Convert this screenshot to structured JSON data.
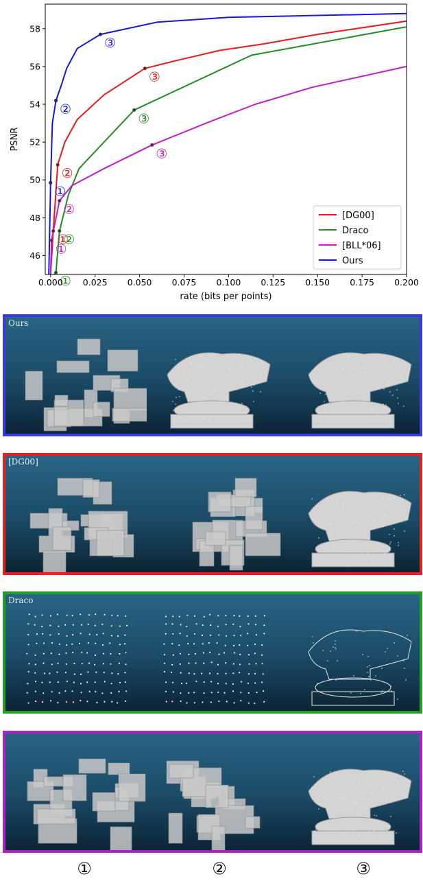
{
  "chart_data": {
    "type": "line",
    "title": "",
    "xlabel": "rate (bits per points)",
    "ylabel": "PSNR",
    "xlim": [
      -0.003,
      0.2
    ],
    "ylim": [
      45,
      59.3
    ],
    "xticks": [
      "0.000",
      "0.025",
      "0.050",
      "0.075",
      "0.100",
      "0.125",
      "0.150",
      "0.175",
      "0.200"
    ],
    "yticks": [
      "46",
      "48",
      "50",
      "52",
      "54",
      "56",
      "58"
    ],
    "legend": {
      "position": "bottom-right",
      "entries": [
        "[DG00]",
        "Draco",
        "[BLL*06]",
        "Ours"
      ]
    },
    "grid": false,
    "series": [
      {
        "name": "[DG00]",
        "color": "#e41a1c",
        "x": [
          0.0,
          0.0015,
          0.004,
          0.008,
          0.015,
          0.03,
          0.053,
          0.07,
          0.095,
          0.12,
          0.15,
          0.2
        ],
        "y": [
          45.0,
          47.3,
          50.8,
          52.0,
          53.2,
          54.5,
          55.9,
          56.3,
          56.85,
          57.2,
          57.7,
          58.4
        ],
        "markers": [
          {
            "x": 0.0015,
            "y": 47.3,
            "label": "①"
          },
          {
            "x": 0.004,
            "y": 50.8,
            "label": "②"
          },
          {
            "x": 0.053,
            "y": 55.9,
            "label": "③"
          }
        ]
      },
      {
        "name": "Draco",
        "color": "#228b22",
        "x": [
          0.002,
          0.003,
          0.005,
          0.01,
          0.016,
          0.047,
          0.113,
          0.2
        ],
        "y": [
          45.0,
          45.1,
          47.3,
          49.2,
          50.6,
          53.7,
          56.6,
          58.1
        ],
        "markers": [
          {
            "x": 0.003,
            "y": 45.1,
            "label": "①"
          },
          {
            "x": 0.005,
            "y": 47.3,
            "label": "②"
          },
          {
            "x": 0.047,
            "y": 53.7,
            "label": "③"
          }
        ]
      },
      {
        "name": "[BLL*06]",
        "color": "#bf1fbf",
        "x": [
          0.0,
          0.0005,
          0.002,
          0.005,
          0.012,
          0.03,
          0.057,
          0.09,
          0.115,
          0.147,
          0.2
        ],
        "y": [
          45.0,
          46.8,
          47.5,
          48.9,
          49.7,
          50.6,
          51.85,
          53.1,
          54.0,
          54.9,
          56.0
        ],
        "markers": [
          {
            "x": 0.0005,
            "y": 46.8,
            "label": "①"
          },
          {
            "x": 0.005,
            "y": 48.9,
            "label": "②"
          },
          {
            "x": 0.057,
            "y": 51.85,
            "label": "③"
          }
        ]
      },
      {
        "name": "Ours",
        "color": "#1515e0",
        "x": [
          -0.001,
          0.0,
          0.001,
          0.003,
          0.006,
          0.009,
          0.015,
          0.028,
          0.06,
          0.1,
          0.15,
          0.2
        ],
        "y": [
          45.0,
          49.85,
          53.0,
          54.2,
          55.0,
          55.9,
          56.95,
          57.7,
          58.35,
          58.6,
          58.7,
          58.8
        ],
        "markers": [
          {
            "x": 0.0,
            "y": 49.85,
            "label": "①"
          },
          {
            "x": 0.003,
            "y": 54.2,
            "label": "②"
          },
          {
            "x": 0.028,
            "y": 57.7,
            "label": "③"
          }
        ]
      }
    ]
  },
  "panels": [
    {
      "label": "Ours",
      "color": "#3a3ae0"
    },
    {
      "label": "[DG00]",
      "color": "#e82020"
    },
    {
      "label": "Draco",
      "color": "#22a022"
    },
    {
      "label": "",
      "color": "#b020c8"
    }
  ],
  "columns": [
    "①",
    "②",
    "③"
  ]
}
